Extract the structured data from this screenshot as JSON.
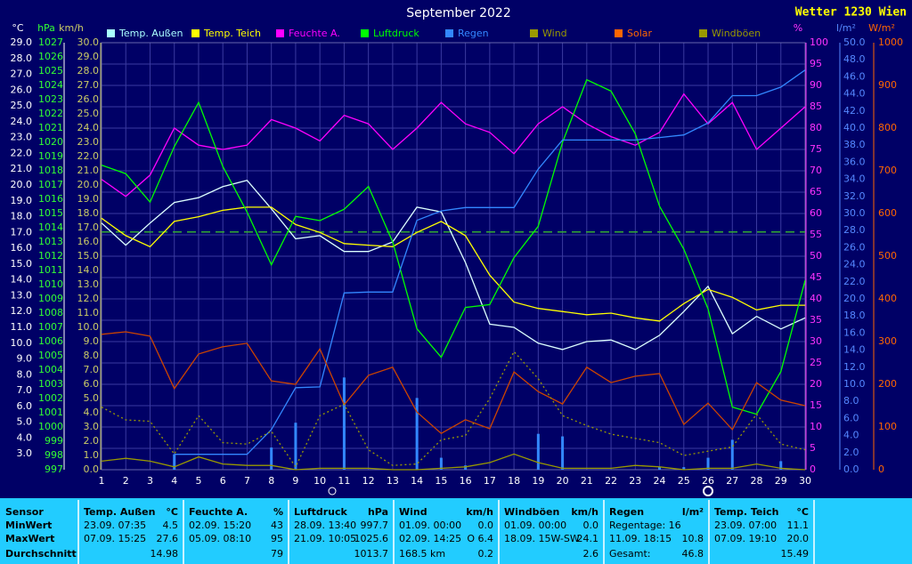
{
  "chart_data": {
    "type": "line",
    "title": "September 2022",
    "brand": "Wetter 1230 Wien",
    "categories": [
      "1",
      "2",
      "3",
      "4",
      "5",
      "6",
      "7",
      "8",
      "9",
      "10",
      "11",
      "12",
      "13",
      "14",
      "15",
      "16",
      "17",
      "18",
      "19",
      "20",
      "21",
      "22",
      "23",
      "24",
      "25",
      "26",
      "27",
      "28",
      "29",
      "30"
    ],
    "axes": [
      {
        "label": "°C",
        "side": "left",
        "color": "#ffffff",
        "lim": [
          2.0,
          29.0
        ],
        "ticks": [
          {
            "value": 3,
            "label": "3.0"
          },
          {
            "value": 4,
            "label": "4.0"
          },
          {
            "value": 5,
            "label": "5.0"
          },
          {
            "value": 6,
            "label": "6.0"
          },
          {
            "value": 7,
            "label": "7.0"
          },
          {
            "value": 8,
            "label": "8.0"
          },
          {
            "value": 9,
            "label": "9.0"
          },
          {
            "value": 10,
            "label": "10.0"
          },
          {
            "value": 11,
            "label": "11.0"
          },
          {
            "value": 12,
            "label": "12.0"
          },
          {
            "value": 13,
            "label": "13.0"
          },
          {
            "value": 14,
            "label": "14.0"
          },
          {
            "value": 15,
            "label": "15.0"
          },
          {
            "value": 16,
            "label": "16.0"
          },
          {
            "value": 17,
            "label": "17.0"
          },
          {
            "value": 18,
            "label": "18.0"
          },
          {
            "value": 19,
            "label": "19.0"
          },
          {
            "value": 20,
            "label": "20.0"
          },
          {
            "value": 21,
            "label": "21.0"
          },
          {
            "value": 22,
            "label": "22.0"
          },
          {
            "value": 23,
            "label": "23.0"
          },
          {
            "value": 24,
            "label": "24.0"
          },
          {
            "value": 25,
            "label": "25.0"
          },
          {
            "value": 26,
            "label": "26.0"
          },
          {
            "value": 27,
            "label": "27.0"
          },
          {
            "value": 28,
            "label": "28.0"
          },
          {
            "value": 29,
            "label": "29.0"
          }
        ]
      },
      {
        "label": "hPa",
        "side": "left",
        "color": "#33ff33",
        "lim": [
          997,
          1027
        ],
        "ticks": [
          997,
          998,
          999,
          1000,
          1001,
          1002,
          1003,
          1004,
          1005,
          1006,
          1007,
          1008,
          1009,
          1010,
          1011,
          1012,
          1013,
          1014,
          1015,
          1016,
          1017,
          1018,
          1019,
          1020,
          1021,
          1022,
          1023,
          1024,
          1025,
          1026,
          1027
        ]
      },
      {
        "label": "km/h",
        "side": "left",
        "color": "#cccc66",
        "lim": [
          0,
          30
        ],
        "ticks": [
          {
            "value": 0,
            "label": "0.0"
          },
          {
            "value": 1,
            "label": "1.0"
          },
          {
            "value": 2,
            "label": "2.0"
          },
          {
            "value": 3,
            "label": "3.0"
          },
          {
            "value": 4,
            "label": "4.0"
          },
          {
            "value": 5,
            "label": "5.0"
          },
          {
            "value": 6,
            "label": "6.0"
          },
          {
            "value": 7,
            "label": "7.0"
          },
          {
            "value": 8,
            "label": "8.0"
          },
          {
            "value": 9,
            "label": "9.0"
          },
          {
            "value": 10,
            "label": "10.0"
          },
          {
            "value": 11,
            "label": "11.0"
          },
          {
            "value": 12,
            "label": "12.0"
          },
          {
            "value": 13,
            "label": "13.0"
          },
          {
            "value": 14,
            "label": "14.0"
          },
          {
            "value": 15,
            "label": "15.0"
          },
          {
            "value": 16,
            "label": "16.0"
          },
          {
            "value": 17,
            "label": "17.0"
          },
          {
            "value": 18,
            "label": "18.0"
          },
          {
            "value": 19,
            "label": "19.0"
          },
          {
            "value": 20,
            "label": "20.0"
          },
          {
            "value": 21,
            "label": "21.0"
          },
          {
            "value": 22,
            "label": "22.0"
          },
          {
            "value": 23,
            "label": "23.0"
          },
          {
            "value": 24,
            "label": "24.0"
          },
          {
            "value": 25,
            "label": "25.0"
          },
          {
            "value": 26,
            "label": "26.0"
          },
          {
            "value": 27,
            "label": "27.0"
          },
          {
            "value": 28,
            "label": "28.0"
          },
          {
            "value": 29,
            "label": "29.0"
          },
          {
            "value": 30,
            "label": "30.0"
          }
        ]
      },
      {
        "label": "%",
        "side": "right",
        "color": "#ff33ff",
        "lim": [
          0,
          100
        ],
        "grid": true,
        "ticks": [
          0,
          5,
          10,
          15,
          20,
          25,
          30,
          35,
          40,
          45,
          50,
          55,
          60,
          65,
          70,
          75,
          80,
          85,
          90,
          95,
          100
        ]
      },
      {
        "label": "l/m²",
        "side": "right",
        "color": "#5588ff",
        "lim": [
          0,
          50
        ],
        "ticks": [
          {
            "value": 0,
            "label": "0.0"
          },
          {
            "value": 2,
            "label": "2.0"
          },
          {
            "value": 4,
            "label": "4.0"
          },
          {
            "value": 6,
            "label": "6.0"
          },
          {
            "value": 8,
            "label": "8.0"
          },
          {
            "value": 10,
            "label": "10.0"
          },
          {
            "value": 12,
            "label": "12.0"
          },
          {
            "value": 14,
            "label": "14.0"
          },
          {
            "value": 16,
            "label": "16.0"
          },
          {
            "value": 18,
            "label": "18.0"
          },
          {
            "value": 20,
            "label": "20.0"
          },
          {
            "value": 22,
            "label": "22.0"
          },
          {
            "value": 24,
            "label": "24.0"
          },
          {
            "value": 26,
            "label": "26.0"
          },
          {
            "value": 28,
            "label": "28.0"
          },
          {
            "value": 30,
            "label": "30.0"
          },
          {
            "value": 32,
            "label": "32.0"
          },
          {
            "value": 34,
            "label": "34.0"
          },
          {
            "value": 36,
            "label": "36.0"
          },
          {
            "value": 38,
            "label": "38.0"
          },
          {
            "value": 40,
            "label": "40.0"
          },
          {
            "value": 42,
            "label": "42.0"
          },
          {
            "value": 44,
            "label": "44.0"
          },
          {
            "value": 46,
            "label": "46.0"
          },
          {
            "value": 48,
            "label": "48.0"
          },
          {
            "value": 50,
            "label": "50.0"
          }
        ]
      },
      {
        "label": "W/m²",
        "side": "right",
        "color": "#ff6600",
        "lim": [
          0,
          1000
        ],
        "ticks": [
          0,
          100,
          200,
          300,
          400,
          500,
          600,
          700,
          800,
          900,
          1000
        ]
      }
    ],
    "series": [
      {
        "name": "Temp. Außen",
        "color": "#ddffff",
        "legend_color": "#aaffff",
        "axis": 0,
        "values": [
          17.6,
          16.2,
          17.6,
          18.9,
          19.2,
          19.9,
          20.3,
          18.5,
          16.6,
          16.8,
          15.8,
          15.8,
          16.4,
          18.6,
          18.3,
          15.1,
          11.2,
          11.0,
          10.0,
          9.6,
          10.1,
          10.2,
          9.6,
          10.5,
          12.0,
          13.6,
          10.6,
          11.7,
          10.9,
          11.6
        ]
      },
      {
        "name": "Temp. Teich",
        "color": "#ffff00",
        "axis": 0,
        "values": [
          17.9,
          16.8,
          16.1,
          17.7,
          18.0,
          18.4,
          18.6,
          18.6,
          17.5,
          17.0,
          16.3,
          16.2,
          16.1,
          17.0,
          17.7,
          16.8,
          14.3,
          12.6,
          12.2,
          12.0,
          11.8,
          11.9,
          11.6,
          11.4,
          12.5,
          13.4,
          12.9,
          12.1,
          12.4,
          12.4
        ]
      },
      {
        "name": "Feuchte A.",
        "color": "#ff00ff",
        "axis": 3,
        "values": [
          68,
          64,
          69,
          80,
          76,
          75,
          76,
          82,
          80,
          77,
          83,
          81,
          75,
          80,
          86,
          81,
          79,
          74,
          81,
          85,
          81,
          78,
          76,
          79,
          88,
          81,
          86,
          75,
          80,
          85
        ]
      },
      {
        "name": "Luftdruck",
        "color": "#00ff00",
        "axis": 1,
        "values": [
          1018.4,
          1017.8,
          1015.8,
          1019.7,
          1022.8,
          1018.3,
          1015.1,
          1011.4,
          1014.8,
          1014.5,
          1015.3,
          1016.9,
          1013.0,
          1006.9,
          1004.9,
          1008.4,
          1008.6,
          1011.9,
          1014.1,
          1020.0,
          1024.4,
          1023.6,
          1020.6,
          1015.5,
          1012.5,
          1008.3,
          1001.4,
          1000.9,
          1003.9,
          1010.3
        ]
      },
      {
        "name": "Regen",
        "color": "#3388ff",
        "axis": 4,
        "values": [
          null,
          null,
          null,
          1.8,
          1.8,
          1.8,
          1.8,
          4.7,
          9.6,
          9.7,
          20.7,
          20.8,
          20.8,
          29.2,
          30.3,
          30.7,
          30.7,
          30.7,
          35.2,
          38.6,
          38.6,
          38.6,
          38.6,
          38.9,
          39.2,
          40.6,
          43.8,
          43.8,
          44.8,
          46.8
        ],
        "bars": [
          0,
          0,
          0,
          1.8,
          0,
          0,
          0,
          2.6,
          5.5,
          0,
          10.8,
          0,
          0,
          8.4,
          1.4,
          0.5,
          0,
          0,
          4.2,
          3.9,
          0,
          0,
          0,
          0.3,
          0.3,
          1.4,
          3.5,
          0,
          1.0,
          0
        ]
      },
      {
        "name": "Wind",
        "color": "#999900",
        "axis": 2,
        "values": [
          0.6,
          0.8,
          0.6,
          0.2,
          0.9,
          0.4,
          0.3,
          0.3,
          0,
          0.1,
          0.1,
          0.1,
          0,
          0,
          0.1,
          0.2,
          0.5,
          1.1,
          0.5,
          0.1,
          0.1,
          0.1,
          0.3,
          0.2,
          0,
          0.1,
          0.1,
          0.4,
          0.1,
          0
        ]
      },
      {
        "name": "Solar",
        "color": "#cc4400",
        "legend_color": "#ff6600",
        "axis": 5,
        "values": [
          317,
          323,
          313,
          190,
          271,
          288,
          296,
          208,
          200,
          283,
          152,
          221,
          240,
          135,
          85,
          117,
          96,
          229,
          183,
          154,
          240,
          204,
          219,
          225,
          106,
          156,
          94,
          204,
          163,
          150
        ]
      },
      {
        "name": "Windböen",
        "color": "#999900",
        "dotted": true,
        "axis": 2,
        "values": [
          4.4,
          3.5,
          3.4,
          1.1,
          3.8,
          1.9,
          1.8,
          2.7,
          0.2,
          3.8,
          4.6,
          1.4,
          0.3,
          0.4,
          2.1,
          2.4,
          5.0,
          8.3,
          6.4,
          3.8,
          3.1,
          2.5,
          2.2,
          1.9,
          1.0,
          1.3,
          1.6,
          3.9,
          1.8,
          1.4
        ]
      }
    ],
    "reference_lines": [
      {
        "axis": 1,
        "value": 1013.7,
        "color": "#33aa33"
      }
    ]
  },
  "stats": {
    "headers": [
      "Sensor",
      "Temp. Außen",
      "Feuchte A.",
      "Luftdruck",
      "Wind",
      "Windböen",
      "Regen",
      "Temp. Teich"
    ],
    "units": [
      "°C",
      "%",
      "hPa",
      "km/h",
      "km/h",
      "l/m²",
      "°C"
    ],
    "rows": [
      {
        "label": "MinWert",
        "cells": [
          [
            "23.09. 07:35",
            "4.5"
          ],
          [
            "02.09. 15:20",
            "43"
          ],
          [
            "28.09. 13:40",
            "997.7"
          ],
          [
            "01.09. 00:00",
            "0.0"
          ],
          [
            "01.09. 00:00",
            "0.0"
          ],
          [
            "Regentage: 16"
          ],
          [
            "23.09. 07:00",
            "11.1"
          ]
        ]
      },
      {
        "label": "MaxWert",
        "cells": [
          [
            "07.09. 15:25",
            "27.6"
          ],
          [
            "05.09. 08:10",
            "95"
          ],
          [
            "21.09. 10:05",
            "1025.6"
          ],
          [
            "02.09. 14:25",
            "O 6.4"
          ],
          [
            "18.09. 15W-SW",
            "24.1"
          ],
          [
            "11.09. 18:15",
            "10.8"
          ],
          [
            "07.09. 19:10",
            "20.0"
          ]
        ]
      },
      {
        "label": "Durchschnitt",
        "cells": [
          [
            "",
            "14.98"
          ],
          [
            "",
            "79"
          ],
          [
            "",
            "1013.7"
          ],
          [
            "168.5 km",
            "0.2"
          ],
          [
            "",
            "2.6"
          ],
          [
            "Gesamt:",
            "46.8"
          ],
          [
            "",
            "15.49"
          ]
        ]
      }
    ]
  }
}
